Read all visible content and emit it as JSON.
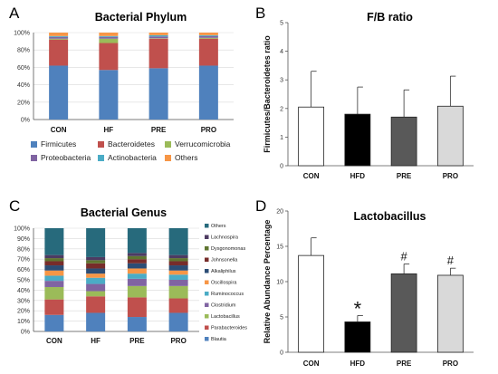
{
  "panels": {
    "a": {
      "letter": "A"
    },
    "b": {
      "letter": "B"
    },
    "c": {
      "letter": "C"
    },
    "d": {
      "letter": "D"
    }
  },
  "chart_data": [
    {
      "id": "a",
      "type": "bar",
      "stacked": true,
      "percent": true,
      "title": "Bacterial Phylum",
      "categories": [
        "CON",
        "HF",
        "PRE",
        "PRO"
      ],
      "ylim": [
        0,
        100
      ],
      "yticks": [
        "0%",
        "20%",
        "40%",
        "60%",
        "80%",
        "100%"
      ],
      "grid": true,
      "legend_position": "bottom",
      "series": [
        {
          "name": "Firmicutes",
          "color": "#4f81bd",
          "values": [
            62,
            57,
            59,
            62
          ]
        },
        {
          "name": "Bacteroidetes",
          "color": "#c0504d",
          "values": [
            30,
            31,
            34,
            31
          ]
        },
        {
          "name": "Verrucomicrobia",
          "color": "#9bbb59",
          "values": [
            1,
            5,
            0.5,
            1
          ]
        },
        {
          "name": "Proteobacteria",
          "color": "#8064a2",
          "values": [
            2,
            2,
            2,
            2
          ]
        },
        {
          "name": "Actinobacteria",
          "color": "#4bacc6",
          "values": [
            1,
            1,
            1.5,
            1
          ]
        },
        {
          "name": "Others",
          "color": "#f79646",
          "values": [
            4,
            4,
            3,
            3
          ]
        }
      ]
    },
    {
      "id": "b",
      "type": "bar",
      "title": "F/B ratio",
      "ylabel": "Firmicutes/Bacteroidetes ratio",
      "categories": [
        "CON",
        "HFD",
        "PRE",
        "PRO"
      ],
      "values": [
        2.05,
        1.8,
        1.7,
        2.08
      ],
      "errors": [
        1.25,
        0.95,
        0.95,
        1.05
      ],
      "colors": [
        "#ffffff",
        "#000000",
        "#595959",
        "#d9d9d9"
      ],
      "ylim": [
        0,
        5
      ],
      "yticks": [
        "0",
        "1",
        "2",
        "3",
        "4",
        "5"
      ],
      "grid": false
    },
    {
      "id": "c",
      "type": "bar",
      "stacked": true,
      "percent": true,
      "title": "Bacterial Genus",
      "categories": [
        "CON",
        "HF",
        "PRE",
        "PRO"
      ],
      "ylim": [
        0,
        100
      ],
      "yticks": [
        "0%",
        "10%",
        "20%",
        "30%",
        "40%",
        "50%",
        "60%",
        "70%",
        "80%",
        "90%",
        "100%"
      ],
      "grid": true,
      "legend_position": "right",
      "series": [
        {
          "name": "Blautia",
          "color": "#4f81bd",
          "values": [
            16,
            18,
            14,
            18
          ]
        },
        {
          "name": "Parabacteroides",
          "color": "#c0504d",
          "values": [
            15,
            16,
            19,
            14
          ]
        },
        {
          "name": "Lactobacillus",
          "color": "#9bbb59",
          "values": [
            12,
            5,
            11,
            12
          ]
        },
        {
          "name": "Clostridium",
          "color": "#8064a2",
          "values": [
            6,
            7,
            7,
            6
          ]
        },
        {
          "name": "Ruminococcus",
          "color": "#4bacc6",
          "values": [
            5,
            6,
            5,
            5
          ]
        },
        {
          "name": "Oscillospira",
          "color": "#f79646",
          "values": [
            5,
            4,
            5,
            4
          ]
        },
        {
          "name": "Alkaliphilus",
          "color": "#2c4d75",
          "values": [
            5,
            5,
            5,
            5
          ]
        },
        {
          "name": "Johnsonella",
          "color": "#772c2a",
          "values": [
            4,
            5,
            4,
            4
          ]
        },
        {
          "name": "Dysgonomonas",
          "color": "#5f7530",
          "values": [
            3,
            3,
            3,
            3
          ]
        },
        {
          "name": "Lachnospira",
          "color": "#4d3b62",
          "values": [
            3,
            3,
            3,
            3
          ]
        },
        {
          "name": "Others",
          "color": "#276a7c",
          "values": [
            26,
            28,
            24,
            26
          ]
        }
      ]
    },
    {
      "id": "d",
      "type": "bar",
      "title": "Lactobacillus",
      "ylabel": "Relative Abundance Percentage",
      "categories": [
        "CON",
        "HFD",
        "PRE",
        "PRO"
      ],
      "values": [
        13.7,
        4.3,
        11.1,
        10.9
      ],
      "errors": [
        2.5,
        0.9,
        1.4,
        1.0
      ],
      "colors": [
        "#ffffff",
        "#000000",
        "#595959",
        "#d9d9d9"
      ],
      "annotations": [
        "",
        "*",
        "#",
        "#"
      ],
      "ylim": [
        0,
        20
      ],
      "yticks": [
        "0",
        "5",
        "10",
        "15",
        "20"
      ],
      "grid": false
    }
  ]
}
